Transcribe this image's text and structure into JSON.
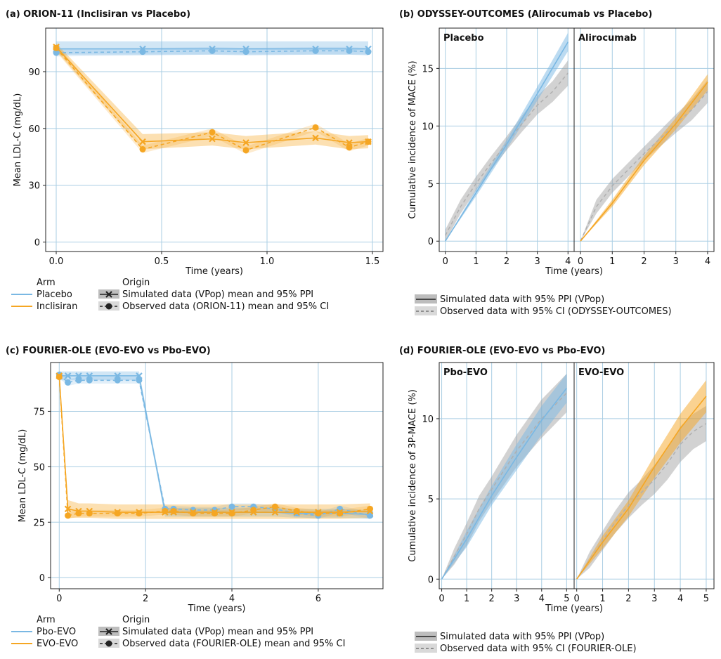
{
  "colors": {
    "placebo": "#7ab8e3",
    "treated": "#f5a623",
    "grey": "#9c9c9c",
    "grid": "#a9cde3"
  },
  "chart_data": [
    {
      "id": "a",
      "type": "line",
      "title": "(a) ORION-11 (Inclisiran vs Placebo)",
      "xlabel": "Time (years)",
      "ylabel": "Mean LDL-C (mg/dL)",
      "xlim": [
        -0.05,
        1.55
      ],
      "ylim": [
        -5,
        113
      ],
      "xticks": [
        0.0,
        0.5,
        1.0,
        1.5
      ],
      "xtick_labels": [
        "0.0",
        "0.5",
        "1.0",
        "1.5"
      ],
      "yticks": [
        0,
        30,
        60,
        90
      ],
      "ytick_labels": [
        "0",
        "30",
        "60",
        "90"
      ],
      "series": [
        {
          "name": "Placebo",
          "kind": "simulated",
          "color": "placebo",
          "x": [
            0,
            0.41,
            0.74,
            0.9,
            1.23,
            1.39,
            1.48
          ],
          "y": [
            102,
            102,
            102,
            102,
            102,
            102,
            102
          ],
          "lo": [
            99,
            99,
            99,
            99,
            99,
            99,
            99
          ],
          "hi": [
            106,
            106,
            106,
            106,
            106,
            106,
            106
          ]
        },
        {
          "name": "Placebo",
          "kind": "observed",
          "color": "placebo",
          "x": [
            0,
            0.41,
            0.74,
            0.9,
            1.23,
            1.39,
            1.48
          ],
          "y": [
            100,
            100.5,
            101,
            100.5,
            101,
            101,
            100.5
          ],
          "lo": [
            98,
            98.5,
            99,
            98.5,
            99,
            99,
            98.5
          ],
          "hi": [
            102,
            102.5,
            103,
            102.5,
            103,
            103,
            102.5
          ]
        },
        {
          "name": "Inclisiran",
          "kind": "simulated",
          "color": "treated",
          "x": [
            0,
            0.41,
            0.74,
            0.9,
            1.23,
            1.39,
            1.48
          ],
          "y": [
            103,
            53,
            54.5,
            52.5,
            55,
            52.5,
            53
          ],
          "lo": [
            101,
            49,
            51,
            49,
            51.5,
            49,
            49.5
          ],
          "hi": [
            105,
            57,
            58,
            56,
            58.5,
            56,
            56.5
          ]
        },
        {
          "name": "Inclisiran",
          "kind": "observed",
          "color": "treated",
          "x": [
            0,
            0.41,
            0.74,
            0.9,
            1.23,
            1.39,
            1.48
          ],
          "y": [
            102.5,
            49,
            58,
            48.5,
            60.5,
            50,
            53
          ],
          "lo": [
            100.5,
            47,
            56,
            46.5,
            58.5,
            48,
            51
          ],
          "hi": [
            104.5,
            51,
            60,
            50.5,
            62.5,
            52,
            55
          ]
        }
      ],
      "legend": {
        "arm_title": "Arm",
        "arm_items": [
          "Placebo",
          "Inclisiran"
        ],
        "origin_title": "Origin",
        "origin_items": [
          "Simulated data (VPop) mean and 95% PPI",
          "Observed data (ORION-11) mean and 95% CI"
        ]
      }
    },
    {
      "id": "b",
      "type": "line",
      "title": "(b) ODYSSEY-OUTCOMES (Alirocumab vs Placebo)",
      "xlabel": "Time (years)",
      "ylabel": "Cumulative incidence of MACE (%)",
      "xlim": [
        -0.2,
        4.2
      ],
      "ylim": [
        -0.9,
        18.5
      ],
      "xticks": [
        0,
        1,
        2,
        3,
        4
      ],
      "xtick_labels": [
        "0",
        "1",
        "2",
        "3",
        "4"
      ],
      "yticks": [
        0,
        5,
        10,
        15
      ],
      "ytick_labels": [
        "0",
        "5",
        "10",
        "15"
      ],
      "facets": [
        {
          "label": "Placebo",
          "color": "placebo",
          "simulated": {
            "x": [
              0,
              1,
              2,
              3,
              4
            ],
            "y": [
              0,
              4.2,
              8.4,
              12.8,
              17.3
            ],
            "lo": [
              0,
              3.9,
              8.0,
              12.2,
              16.5
            ],
            "hi": [
              0,
              4.5,
              8.8,
              13.4,
              18.1
            ]
          },
          "observed": {
            "x": [
              0,
              0.5,
              1,
              1.5,
              2,
              2.5,
              3,
              3.5,
              4
            ],
            "y": [
              0.5,
              3.0,
              5.0,
              6.8,
              8.5,
              10.2,
              11.8,
              13.0,
              14.6
            ],
            "lo": [
              0,
              2.4,
              4.4,
              6.2,
              7.9,
              9.5,
              11.0,
              12.1,
              13.5
            ],
            "hi": [
              1,
              3.6,
              5.6,
              7.4,
              9.1,
              10.9,
              12.6,
              13.9,
              15.7
            ]
          }
        },
        {
          "label": "Alirocumab",
          "color": "treated",
          "simulated": {
            "x": [
              0,
              1,
              2,
              3,
              4
            ],
            "y": [
              0,
              3.3,
              7.0,
              10.2,
              13.8
            ],
            "lo": [
              0,
              3.0,
              6.6,
              9.7,
              13.1
            ],
            "hi": [
              0,
              3.6,
              7.4,
              10.7,
              14.5
            ]
          },
          "observed": {
            "x": [
              0,
              0.5,
              1,
              1.5,
              2,
              2.5,
              3,
              3.5,
              4
            ],
            "y": [
              0,
              3.0,
              4.8,
              6.2,
              7.6,
              8.9,
              10.2,
              11.4,
              13.0
            ],
            "lo": [
              0,
              2.4,
              4.2,
              5.6,
              7.0,
              8.2,
              9.4,
              10.5,
              12.0
            ],
            "hi": [
              0,
              3.6,
              5.4,
              6.8,
              8.2,
              9.6,
              11.0,
              12.3,
              14.0
            ]
          }
        }
      ],
      "legend": {
        "items": [
          "Simulated data with 95% PPI (VPop)",
          "Observed data with 95% CI (ODYSSEY-OUTCOMES)"
        ]
      }
    },
    {
      "id": "c",
      "type": "line",
      "title": "(c) FOURIER-OLE (EVO-EVO vs Pbo-EVO)",
      "xlabel": "Time (years)",
      "ylabel": "Mean LDL-C (mg/dL)",
      "xlim": [
        -0.2,
        7.5
      ],
      "ylim": [
        -5,
        97
      ],
      "xticks": [
        0,
        2,
        4,
        6
      ],
      "xtick_labels": [
        "0",
        "2",
        "4",
        "6"
      ],
      "yticks": [
        0,
        25,
        50,
        75
      ],
      "ytick_labels": [
        "0",
        "25",
        "50",
        "75"
      ],
      "series": [
        {
          "name": "Pbo-EVO",
          "kind": "simulated",
          "color": "placebo",
          "x": [
            0,
            0.2,
            0.45,
            0.7,
            1.35,
            1.85,
            2.45,
            2.65,
            3.1,
            3.6,
            4.0,
            4.5,
            5.0,
            5.5,
            6.0,
            6.5,
            7.2
          ],
          "y": [
            91,
            91,
            91,
            91,
            91,
            91,
            29.5,
            29.5,
            29.5,
            29.5,
            29.5,
            29.5,
            29.5,
            29,
            29,
            29,
            28.5
          ],
          "lo": [
            89,
            89,
            89,
            89,
            89,
            89,
            27.5,
            27.5,
            27.5,
            27.5,
            27.5,
            27.5,
            27.5,
            27,
            27,
            27,
            26.5
          ],
          "hi": [
            93,
            93,
            93,
            93,
            93,
            93,
            31.5,
            31.5,
            31.5,
            31.5,
            31.5,
            31.5,
            31.5,
            31,
            31,
            31,
            30.5
          ]
        },
        {
          "name": "Pbo-EVO",
          "kind": "observed",
          "color": "placebo",
          "x": [
            0,
            0.2,
            0.45,
            0.7,
            1.35,
            1.85,
            2.45,
            2.65,
            3.1,
            3.6,
            4.0,
            4.5,
            5.0,
            5.5,
            6.0,
            6.5,
            7.2
          ],
          "y": [
            91.5,
            88,
            89,
            89,
            89,
            89,
            31,
            31,
            30.5,
            30.5,
            32,
            32,
            31,
            29,
            28,
            31,
            28
          ],
          "lo": [
            90,
            86.5,
            87.5,
            87.5,
            87.5,
            87.5,
            29.5,
            29.5,
            29,
            29,
            30.5,
            30.5,
            29.5,
            27.5,
            26.5,
            29.5,
            26.5
          ],
          "hi": [
            93,
            89.5,
            90.5,
            90.5,
            90.5,
            90.5,
            32.5,
            32.5,
            32,
            32,
            33.5,
            33.5,
            32.5,
            30.5,
            29.5,
            32.5,
            29.5
          ]
        },
        {
          "name": "EVO-EVO",
          "kind": "simulated",
          "color": "treated",
          "x": [
            0,
            0.2,
            0.45,
            0.7,
            1.35,
            1.85,
            2.45,
            2.65,
            3.1,
            3.6,
            4.0,
            4.5,
            5.0,
            5.5,
            6.0,
            6.5,
            7.2
          ],
          "y": [
            91,
            31,
            30,
            30,
            29.5,
            29.5,
            29.5,
            29.5,
            29.5,
            29.5,
            29.5,
            29.5,
            29.5,
            29.5,
            29.5,
            29.5,
            30
          ],
          "lo": [
            89,
            27,
            27,
            27,
            26.5,
            26.5,
            26.5,
            26.5,
            26.5,
            26.5,
            26.5,
            26.5,
            26.5,
            26.5,
            26.5,
            26.5,
            27
          ],
          "hi": [
            93,
            35,
            33.5,
            33.5,
            33,
            33,
            33,
            33,
            33,
            33,
            33,
            33,
            33,
            33,
            33,
            33,
            33.5
          ]
        },
        {
          "name": "EVO-EVO",
          "kind": "observed",
          "color": "treated",
          "x": [
            0,
            0.2,
            0.45,
            0.7,
            1.35,
            1.85,
            2.45,
            2.65,
            3.1,
            3.6,
            4.0,
            4.5,
            5.0,
            5.5,
            6.0,
            6.5,
            7.2
          ],
          "y": [
            90.5,
            28,
            29,
            29,
            29,
            29,
            30,
            30,
            29,
            29,
            29,
            30.5,
            32,
            30,
            29,
            29,
            31
          ],
          "lo": [
            89,
            26.5,
            27.5,
            27.5,
            27.5,
            27.5,
            28.5,
            28.5,
            27.5,
            27.5,
            27.5,
            29,
            30.5,
            28.5,
            27.5,
            27.5,
            29.5
          ],
          "hi": [
            92,
            29.5,
            30.5,
            30.5,
            30.5,
            30.5,
            31.5,
            31.5,
            30.5,
            30.5,
            30.5,
            32,
            33.5,
            31.5,
            30.5,
            30.5,
            32.5
          ]
        }
      ],
      "legend": {
        "arm_title": "Arm",
        "arm_items": [
          "Pbo-EVO",
          "EVO-EVO"
        ],
        "origin_title": "Origin",
        "origin_items": [
          "Simulated data (VPop) mean and 95% PPI",
          "Observed data (FOURIER-OLE) mean and 95% CI"
        ]
      }
    },
    {
      "id": "d",
      "type": "line",
      "title": "(d) FOURIER-OLE (EVO-EVO vs Pbo-EVO)",
      "xlabel": "Time (years)",
      "ylabel": "Cumulative incidence of 3P-MACE (%)",
      "xlim": [
        -0.1,
        5.3
      ],
      "ylim": [
        -0.6,
        13.5
      ],
      "xticks": [
        0,
        1,
        2,
        3,
        4,
        5
      ],
      "xtick_labels": [
        "0",
        "1",
        "2",
        "3",
        "4",
        "5"
      ],
      "yticks": [
        0,
        5,
        10
      ],
      "ytick_labels": [
        "0",
        "5",
        "10"
      ],
      "facets": [
        {
          "label": "Pbo-EVO",
          "color": "placebo",
          "simulated": {
            "x": [
              0,
              1,
              2,
              3,
              4,
              5
            ],
            "y": [
              0,
              2.5,
              5.2,
              7.6,
              9.9,
              11.9
            ],
            "lo": [
              0,
              2.0,
              4.6,
              6.8,
              9.0,
              11.0
            ],
            "hi": [
              0,
              3.0,
              5.8,
              8.4,
              10.8,
              12.8
            ]
          },
          "observed": {
            "x": [
              0,
              0.5,
              1,
              1.5,
              2,
              2.5,
              3,
              3.5,
              4,
              4.5,
              5
            ],
            "y": [
              0,
              1.4,
              2.8,
              4.4,
              5.6,
              6.8,
              8.0,
              9.0,
              10.0,
              10.8,
              11.6
            ],
            "lo": [
              0,
              0.9,
              2.1,
              3.6,
              4.8,
              5.9,
              7.0,
              7.9,
              8.8,
              9.6,
              10.4
            ],
            "hi": [
              0,
              1.9,
              3.5,
              5.2,
              6.4,
              7.7,
              9.0,
              10.1,
              11.2,
              12.0,
              12.8
            ]
          }
        },
        {
          "label": "EVO-EVO",
          "color": "treated",
          "simulated": {
            "x": [
              0,
              1,
              2,
              3,
              4,
              5
            ],
            "y": [
              0,
              2.3,
              4.4,
              7.0,
              9.4,
              11.4
            ],
            "lo": [
              0,
              1.9,
              3.9,
              6.3,
              8.5,
              10.4
            ],
            "hi": [
              0,
              2.7,
              4.9,
              7.7,
              10.3,
              12.4
            ]
          },
          "observed": {
            "x": [
              0,
              0.5,
              1,
              1.5,
              2,
              2.5,
              3,
              3.5,
              4,
              4.5,
              5
            ],
            "y": [
              0,
              1.2,
              2.4,
              3.6,
              4.6,
              5.4,
              6.2,
              7.2,
              8.4,
              9.2,
              9.7
            ],
            "lo": [
              0,
              0.7,
              1.8,
              2.9,
              3.8,
              4.6,
              5.3,
              6.2,
              7.3,
              8.1,
              8.6
            ],
            "hi": [
              0,
              1.7,
              3.0,
              4.3,
              5.4,
              6.2,
              7.1,
              8.2,
              9.5,
              10.3,
              10.8
            ]
          }
        }
      ],
      "legend": {
        "items": [
          "Simulated data with 95% PPI (VPop)",
          "Observed data with 95% CI (FOURIER-OLE)"
        ]
      }
    }
  ]
}
